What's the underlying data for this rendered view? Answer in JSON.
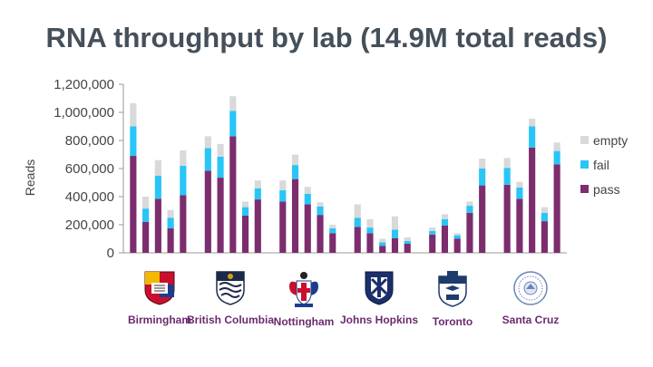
{
  "chart_data": {
    "type": "bar",
    "stacked": true,
    "title": "RNA throughput by lab (14.9M total reads)",
    "ylabel": "Reads",
    "ylim": [
      0,
      1200000
    ],
    "yticks": [
      "0",
      "200,000",
      "400,000",
      "600,000",
      "800,000",
      "1,000,000",
      "1,200,000"
    ],
    "legend_position": "right",
    "colors": {
      "pass": "#7b2d6e",
      "fail": "#29c5f6",
      "empty": "#d9d9d9"
    },
    "groups": [
      {
        "name": "Birmingham",
        "runs": 5
      },
      {
        "name": "British Columbia",
        "runs": 5
      },
      {
        "name": "Nottingham",
        "runs": 5
      },
      {
        "name": "Johns Hopkins",
        "runs": 5
      },
      {
        "name": "Toronto",
        "runs": 5
      },
      {
        "name": "Santa Cruz",
        "runs": 5
      }
    ],
    "series": [
      {
        "name": "pass",
        "values": [
          690000,
          220000,
          385000,
          175000,
          410000,
          585000,
          535000,
          830000,
          265000,
          380000,
          365000,
          525000,
          345000,
          270000,
          140000,
          185000,
          140000,
          50000,
          105000,
          65000,
          130000,
          195000,
          100000,
          285000,
          480000,
          485000,
          385000,
          750000,
          225000,
          630000
        ]
      },
      {
        "name": "fail",
        "values": [
          210000,
          95000,
          165000,
          75000,
          210000,
          160000,
          150000,
          180000,
          60000,
          80000,
          80000,
          100000,
          75000,
          60000,
          35000,
          65000,
          40000,
          25000,
          60000,
          20000,
          25000,
          45000,
          25000,
          50000,
          120000,
          120000,
          80000,
          150000,
          60000,
          95000
        ]
      },
      {
        "name": "empty",
        "values": [
          165000,
          85000,
          110000,
          55000,
          110000,
          85000,
          90000,
          105000,
          40000,
          55000,
          70000,
          75000,
          50000,
          30000,
          25000,
          95000,
          60000,
          25000,
          95000,
          25000,
          25000,
          35000,
          15000,
          30000,
          70000,
          70000,
          40000,
          55000,
          40000,
          60000
        ]
      }
    ]
  },
  "legend": [
    "empty",
    "fail",
    "pass"
  ],
  "labs": [
    {
      "name": "Birmingham",
      "logo": "crest-icon"
    },
    {
      "name": "British Columbia",
      "logo": "shield-icon"
    },
    {
      "name": "Nottingham",
      "logo": "coat-of-arms-icon"
    },
    {
      "name": "Johns Hopkins",
      "logo": "shield-icon"
    },
    {
      "name": "Toronto",
      "logo": "shield-icon"
    },
    {
      "name": "Santa Cruz",
      "logo": "seal-icon"
    }
  ]
}
